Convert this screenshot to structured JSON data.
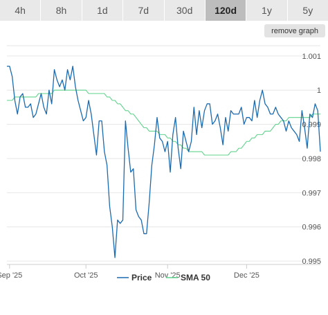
{
  "tabs": [
    {
      "label": "4h",
      "active": false
    },
    {
      "label": "8h",
      "active": false
    },
    {
      "label": "1d",
      "active": false
    },
    {
      "label": "7d",
      "active": false
    },
    {
      "label": "30d",
      "active": false
    },
    {
      "label": "120d",
      "active": true
    },
    {
      "label": "1y",
      "active": false
    },
    {
      "label": "5y",
      "active": false
    }
  ],
  "remove_graph_label": "remove graph",
  "chart_data": {
    "type": "line",
    "title": "",
    "xlabel": "",
    "ylabel": "",
    "ylim": [
      0.9949,
      1.0013
    ],
    "y_ticks": [
      0.995,
      0.996,
      0.997,
      0.998,
      0.999,
      1.0,
      1.001
    ],
    "y_tick_labels": [
      "0.995",
      "0.996",
      "0.997",
      "0.998",
      "0.999",
      "1",
      "1.001"
    ],
    "x_ticks": [
      "Sep '25",
      "Oct '25",
      "Nov '25",
      "Dec '25"
    ],
    "x_tick_index": [
      1,
      30,
      61,
      91
    ],
    "grid": true,
    "legend_position": "bottom",
    "colors": {
      "price": "#1a6ab0",
      "sma": "#5fd38d"
    },
    "series": [
      {
        "name": "Price",
        "values": [
          1.0007,
          1.0007,
          1.0004,
          0.9997,
          0.9993,
          0.9998,
          0.9999,
          0.9995,
          0.9995,
          0.9996,
          0.9992,
          0.9993,
          0.9996,
          0.9999,
          0.9995,
          0.9993,
          1.0,
          0.9996,
          1.0006,
          1.0003,
          1.0001,
          1.0003,
          1.0,
          1.0006,
          1.0003,
          1.0007,
          1.0001,
          0.9997,
          0.9994,
          0.9991,
          0.9992,
          0.9997,
          0.9993,
          0.9987,
          0.9981,
          0.9991,
          0.9991,
          0.9982,
          0.9978,
          0.9966,
          0.996,
          0.9951,
          0.9962,
          0.9961,
          0.9962,
          0.9991,
          0.9983,
          0.9976,
          0.9977,
          0.9965,
          0.9963,
          0.9962,
          0.9958,
          0.9958,
          0.9967,
          0.9978,
          0.9984,
          0.9992,
          0.9986,
          0.9985,
          0.9982,
          0.9985,
          0.9976,
          0.9987,
          0.9992,
          0.9983,
          0.9977,
          0.9988,
          0.9985,
          0.9982,
          0.9985,
          0.9995,
          0.9987,
          0.9994,
          0.9989,
          0.9994,
          0.9996,
          0.9996,
          0.999,
          0.9991,
          0.9993,
          0.9989,
          0.9984,
          0.9992,
          0.9988,
          0.9994,
          0.9993,
          0.9993,
          0.9993,
          0.9995,
          0.999,
          0.9992,
          0.9992,
          0.9991,
          0.9997,
          0.9992,
          0.9997,
          1.0,
          0.9996,
          0.9995,
          0.9993,
          0.9993,
          0.9995,
          0.9993,
          0.9992,
          0.9991,
          0.9988,
          0.9991,
          0.9989,
          0.9988,
          0.9987,
          0.9985,
          0.9994,
          0.9989,
          0.9983,
          0.9993,
          0.9992,
          0.9996,
          0.9994,
          0.9982
        ]
      },
      {
        "name": "SMA 50",
        "values": [
          0.9997,
          0.9997,
          0.9997,
          0.9998,
          0.9998,
          0.9998,
          0.9998,
          0.9998,
          0.9998,
          0.9998,
          0.9998,
          0.9998,
          0.9999,
          0.9999,
          0.9999,
          0.9999,
          0.9999,
          0.9999,
          1.0,
          1.0,
          1.0,
          1.0,
          1.0,
          1.0,
          1.0,
          1.0,
          1.0,
          1.0,
          1.0,
          1.0,
          1.0,
          0.9999,
          0.9999,
          0.9999,
          0.9999,
          0.9999,
          0.9999,
          0.9999,
          0.9998,
          0.9998,
          0.9997,
          0.9997,
          0.9996,
          0.9996,
          0.9995,
          0.9994,
          0.9994,
          0.9993,
          0.9993,
          0.9992,
          0.9991,
          0.999,
          0.9989,
          0.9989,
          0.9988,
          0.9988,
          0.9988,
          0.9988,
          0.9987,
          0.9987,
          0.9987,
          0.9986,
          0.9986,
          0.9985,
          0.9985,
          0.9984,
          0.9984,
          0.9983,
          0.9983,
          0.9982,
          0.9982,
          0.9982,
          0.9982,
          0.9982,
          0.9982,
          0.9981,
          0.9981,
          0.9981,
          0.9981,
          0.9981,
          0.9981,
          0.9981,
          0.9981,
          0.9981,
          0.9981,
          0.9982,
          0.9982,
          0.9982,
          0.9983,
          0.9983,
          0.9984,
          0.9985,
          0.9985,
          0.9986,
          0.9986,
          0.9987,
          0.9987,
          0.9987,
          0.9988,
          0.9988,
          0.9988,
          0.9989,
          0.999,
          0.999,
          0.9991,
          0.9991,
          0.9991,
          0.9992,
          0.9992,
          0.9992,
          0.9992,
          0.9992,
          0.9992,
          0.9992,
          0.9992,
          0.9992,
          0.9993,
          0.9993,
          0.9993,
          0.9993
        ]
      }
    ]
  }
}
